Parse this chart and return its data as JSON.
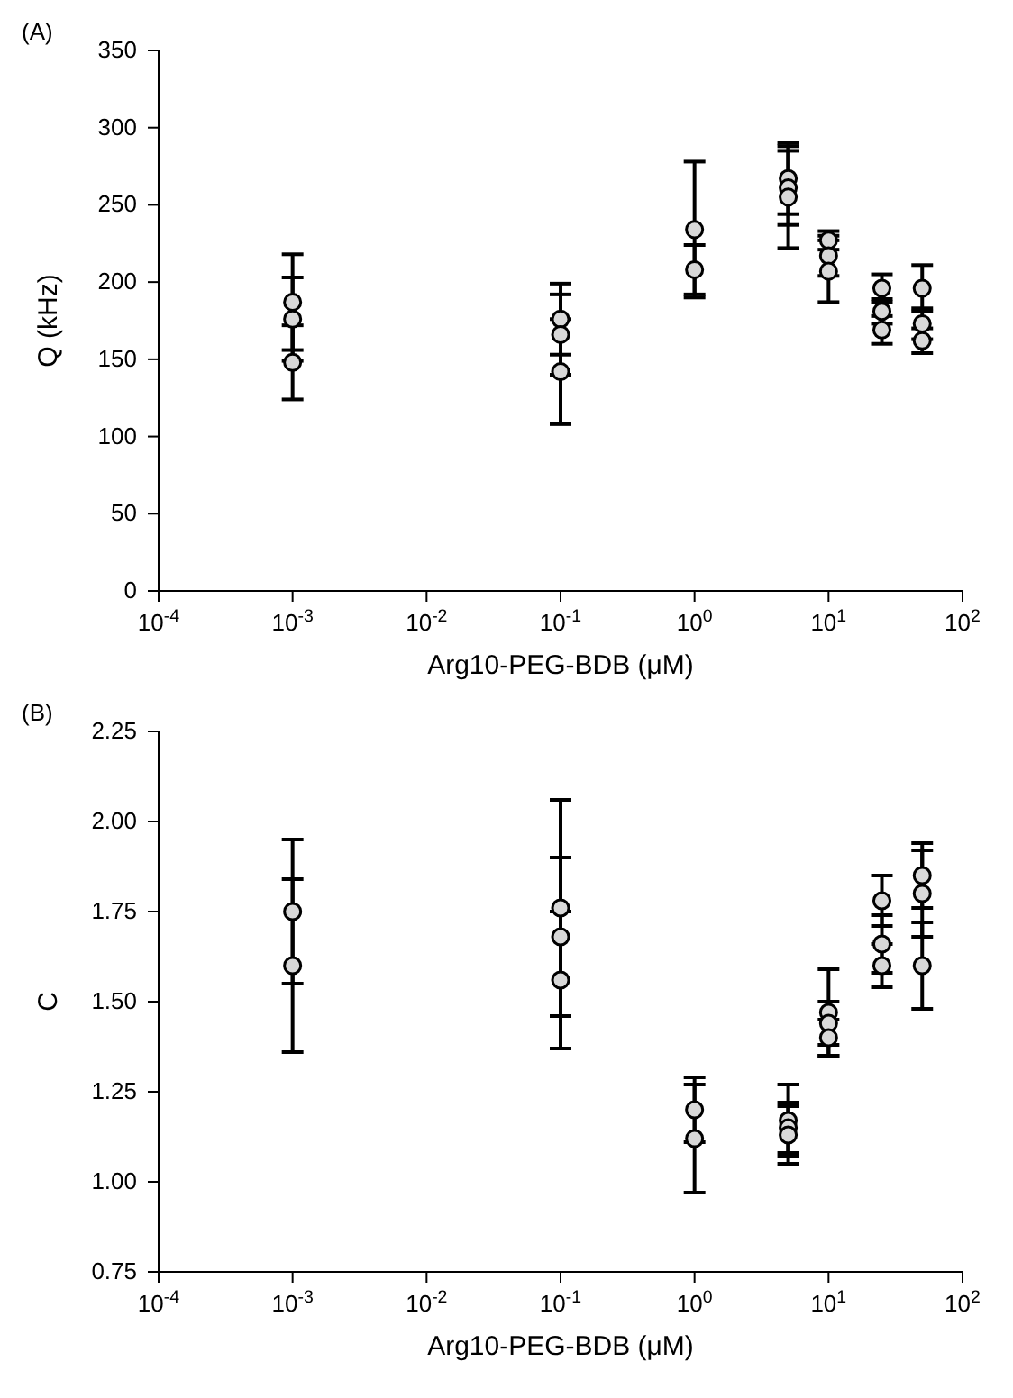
{
  "chart_data": [
    {
      "type": "scatter",
      "title": "(A)",
      "xlabel": "Arg10-PEG-BDB (μM)",
      "ylabel": "Q (kHz)",
      "log": "x",
      "marker": "circle",
      "grid": false,
      "xlim": [
        0.0001,
        100
      ],
      "xticks": [
        {
          "value": 0.0001,
          "label": "10$^{-4}$"
        },
        {
          "value": 0.001,
          "label": "10$^{-3}$"
        },
        {
          "value": 0.01,
          "label": "10$^{-2}$"
        },
        {
          "value": 0.1,
          "label": "10$^{-1}$"
        },
        {
          "value": 1,
          "label": "10$^{0}$"
        },
        {
          "value": 10,
          "label": "10$^{1}$"
        },
        {
          "value": 100,
          "label": "10$^{2}$"
        }
      ],
      "ylim": [
        0,
        350
      ],
      "yticks": [
        0,
        50,
        100,
        150,
        200,
        250,
        300,
        350
      ],
      "series": [
        {
          "color": "#000000",
          "x": [
            0.001,
            0.001,
            0.001,
            0.1,
            0.1,
            0.1,
            1,
            1,
            5,
            5,
            5,
            10,
            10,
            10,
            25,
            25,
            25,
            50,
            50,
            50
          ],
          "values": [
            187,
            176,
            148,
            176,
            166,
            142,
            234,
            208,
            267,
            261,
            255,
            227,
            217,
            207,
            196,
            181,
            169,
            196,
            173,
            162
          ],
          "errors": [
            31,
            27,
            24,
            23,
            26,
            34,
            44,
            16,
            23,
            24,
            33,
            6,
            13,
            20,
            9,
            8,
            9,
            15,
            10,
            8
          ]
        }
      ]
    },
    {
      "type": "scatter",
      "title": "(B)",
      "xlabel": "Arg10-PEG-BDB (μM)",
      "ylabel": "C",
      "log": "x",
      "marker": "circle",
      "grid": false,
      "xlim": [
        0.0001,
        100
      ],
      "xticks": [
        {
          "value": 0.0001,
          "label": "10$^{-4}$"
        },
        {
          "value": 0.001,
          "label": "10$^{-3}$"
        },
        {
          "value": 0.01,
          "label": "10$^{-2}$"
        },
        {
          "value": 0.1,
          "label": "10$^{-1}$"
        },
        {
          "value": 1,
          "label": "10$^{0}$"
        },
        {
          "value": 10,
          "label": "10$^{1}$"
        },
        {
          "value": 100,
          "label": "10$^{2}$"
        }
      ],
      "ylim": [
        0.75,
        2.25
      ],
      "yticks": [
        0.75,
        {
          "value": 1,
          "label": "1.00"
        },
        1.25,
        {
          "value": 1.5,
          "label": "1.50"
        },
        1.75,
        {
          "value": 2,
          "label": "2.00"
        },
        2.25
      ],
      "series": [
        {
          "color": "#000000",
          "x": [
            0.001,
            0.001,
            0.1,
            0.1,
            0.1,
            1,
            1,
            5,
            5,
            5,
            10,
            10,
            10,
            25,
            25,
            25,
            50,
            50,
            50
          ],
          "values": [
            1.75,
            1.6,
            1.76,
            1.68,
            1.56,
            1.2,
            1.12,
            1.17,
            1.15,
            1.13,
            1.47,
            1.44,
            1.4,
            1.78,
            1.66,
            1.6,
            1.85,
            1.8,
            1.6
          ],
          "errors": [
            0.2,
            0.24,
            0.3,
            0.22,
            0.19,
            0.09,
            0.15,
            0.1,
            0.07,
            0.08,
            0.12,
            0.06,
            0.05,
            0.07,
            0.08,
            0.06,
            0.09,
            0.12,
            0.12
          ]
        }
      ]
    }
  ]
}
